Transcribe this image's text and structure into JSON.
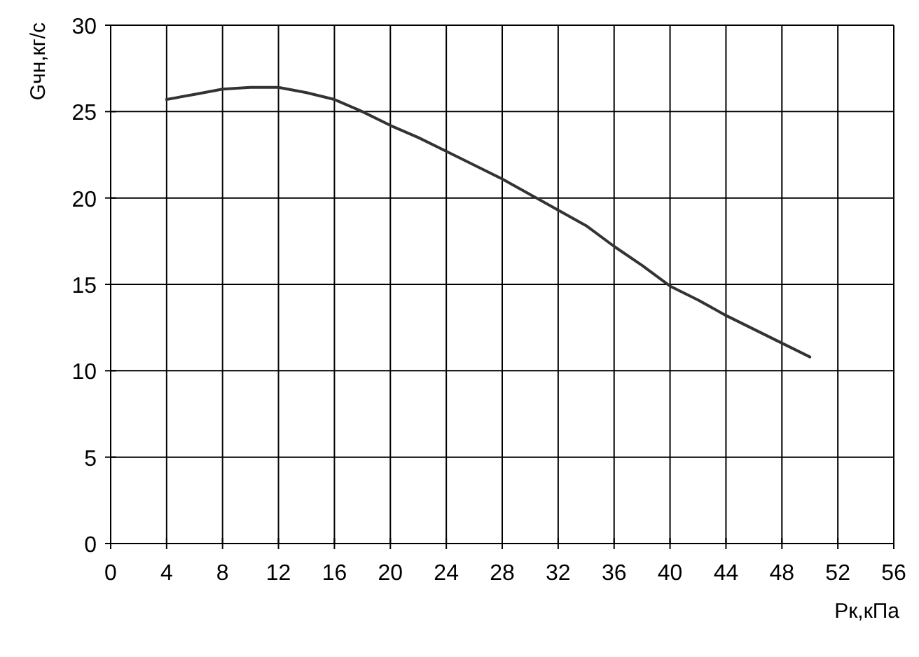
{
  "chart_data": {
    "type": "line",
    "xlabel": "Рк,кПа",
    "ylabel": "Gчн,кг/с",
    "x": [
      4,
      6,
      8,
      10,
      12,
      14,
      16,
      18,
      20,
      22,
      24,
      26,
      28,
      30,
      32,
      34,
      36,
      38,
      40,
      42,
      44,
      46,
      48,
      50
    ],
    "series": [
      {
        "color": "#333333",
        "values": [
          25.7,
          26.0,
          26.3,
          26.4,
          26.4,
          26.1,
          25.7,
          25.0,
          24.2,
          23.5,
          22.7,
          21.9,
          21.1,
          20.2,
          19.3,
          18.4,
          17.2,
          16.1,
          14.9,
          14.1,
          13.2,
          12.4,
          11.6,
          10.8
        ]
      }
    ],
    "xlim": [
      0,
      56
    ],
    "xticks": [
      0,
      4,
      8,
      12,
      16,
      20,
      24,
      28,
      32,
      36,
      40,
      44,
      48,
      52,
      56
    ],
    "ylim": [
      0,
      30
    ],
    "yticks": [
      0,
      5,
      10,
      15,
      20,
      25,
      30
    ],
    "grid": true,
    "marker": "none",
    "line_style": "solid"
  }
}
